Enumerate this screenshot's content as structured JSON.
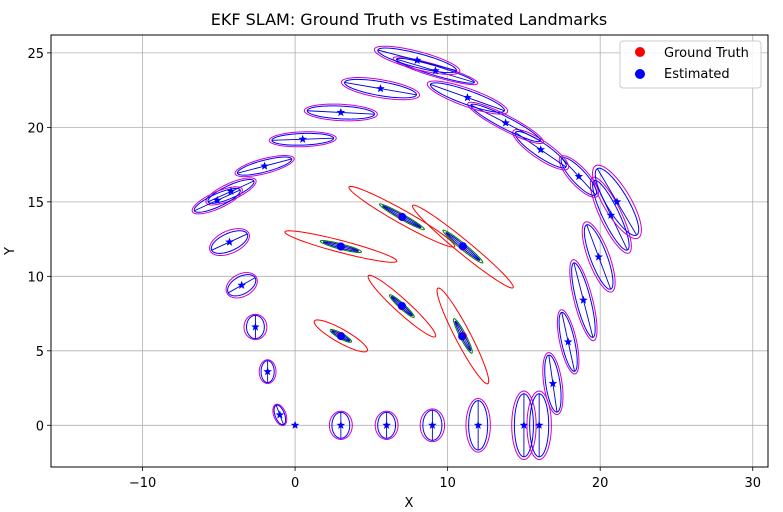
{
  "chart_data": {
    "type": "scatter",
    "title": "EKF SLAM: Ground Truth vs Estimated Landmarks",
    "xlabel": "X",
    "ylabel": "Y",
    "xlim": [
      -16,
      31
    ],
    "ylim": [
      -2.8,
      26.2
    ],
    "xticks": [
      -10,
      0,
      10,
      20,
      30
    ],
    "yticks": [
      0,
      5,
      10,
      15,
      20,
      25
    ],
    "grid": true,
    "legend_position": "top-right",
    "colors": {
      "ground_truth": "#ff0000",
      "estimated": "#0000ff",
      "pose_ellipse_outer": "#cc00cc",
      "landmark_ellipse_inner": "#008000",
      "landmark_ellipse_outer": "#ff0000"
    },
    "series": [
      {
        "name": "Ground Truth",
        "marker": "circle",
        "x": [
          3,
          7,
          11,
          3,
          7,
          11
        ],
        "y": [
          6,
          8,
          6,
          12,
          14,
          12
        ]
      },
      {
        "name": "Estimated",
        "marker": "circle",
        "x": [
          3.02,
          7.0,
          10.95,
          3.0,
          7.03,
          11.0
        ],
        "y": [
          5.98,
          8.02,
          5.97,
          12.0,
          13.98,
          12.02
        ]
      }
    ],
    "trajectory": {
      "marker": "star",
      "x": [
        0,
        -1,
        -1.8,
        -2.6,
        -3.5,
        -4.3,
        -5.1,
        -4.2,
        -2,
        0.5,
        3,
        5.6,
        8,
        9.2,
        11.3,
        13.8,
        16.1,
        18.6,
        20.7,
        21.1,
        19.9,
        18.9,
        17.9,
        16.9,
        16,
        15,
        12,
        9,
        6,
        3
      ],
      "y": [
        0,
        0.7,
        3.6,
        6.6,
        9.4,
        12.3,
        15.1,
        15.7,
        17.4,
        19.2,
        21,
        22.6,
        24.5,
        23.8,
        22,
        20.3,
        18.5,
        16.7,
        14.1,
        15,
        11.3,
        8.4,
        5.6,
        2.8,
        0,
        0,
        0,
        0,
        0,
        0
      ]
    },
    "pose_uncertainty": [
      {
        "x": 3,
        "y": 0,
        "sx": 0.75,
        "sy": 0.95,
        "angle": 0
      },
      {
        "x": 6,
        "y": 0,
        "sx": 0.75,
        "sy": 0.95,
        "angle": 0
      },
      {
        "x": 9,
        "y": 0,
        "sx": 0.8,
        "sy": 1.1,
        "angle": 0
      },
      {
        "x": 12,
        "y": 0,
        "sx": 0.8,
        "sy": 1.8,
        "angle": 0
      },
      {
        "x": 15,
        "y": 0,
        "sx": 0.8,
        "sy": 2.3,
        "angle": 0
      },
      {
        "x": 16,
        "y": 0,
        "sx": 0.8,
        "sy": 2.3,
        "angle": 0
      },
      {
        "x": 16.9,
        "y": 2.8,
        "sx": 0.6,
        "sy": 2.1,
        "angle": 8
      },
      {
        "x": 17.9,
        "y": 5.6,
        "sx": 0.55,
        "sy": 2.2,
        "angle": 12
      },
      {
        "x": 18.9,
        "y": 8.4,
        "sx": 0.6,
        "sy": 2.8,
        "angle": 14
      },
      {
        "x": 19.9,
        "y": 11.3,
        "sx": 0.7,
        "sy": 2.5,
        "angle": 20
      },
      {
        "x": 20.7,
        "y": 14.1,
        "sx": 0.7,
        "sy": 2.8,
        "angle": 25
      },
      {
        "x": 21.1,
        "y": 15,
        "sx": 0.9,
        "sy": 2.8,
        "angle": 30
      },
      {
        "x": 18.6,
        "y": 16.7,
        "sx": 0.6,
        "sy": 1.8,
        "angle": 42
      },
      {
        "x": 16.1,
        "y": 18.5,
        "sx": 0.6,
        "sy": 2.2,
        "angle": 55
      },
      {
        "x": 13.8,
        "y": 20.3,
        "sx": 0.5,
        "sy": 2.8,
        "angle": 62
      },
      {
        "x": 11.3,
        "y": 22,
        "sx": 0.6,
        "sy": 2.8,
        "angle": 70
      },
      {
        "x": 9.2,
        "y": 23.8,
        "sx": 0.4,
        "sy": 2.9,
        "angle": 73
      },
      {
        "x": 8,
        "y": 24.5,
        "sx": 0.6,
        "sy": 2.9,
        "angle": 75
      },
      {
        "x": 5.6,
        "y": 22.6,
        "sx": 0.6,
        "sy": 2.6,
        "angle": 80
      },
      {
        "x": 3,
        "y": 21,
        "sx": 0.55,
        "sy": 2.4,
        "angle": 87
      },
      {
        "x": 0.5,
        "y": 19.2,
        "sx": 0.5,
        "sy": 2.2,
        "angle": 92
      },
      {
        "x": -2,
        "y": 17.4,
        "sx": 0.5,
        "sy": 2.0,
        "angle": 105
      },
      {
        "x": -4.2,
        "y": 15.7,
        "sx": 0.55,
        "sy": 1.8,
        "angle": 115
      },
      {
        "x": -5.1,
        "y": 15.1,
        "sx": 0.55,
        "sy": 1.8,
        "angle": 115
      },
      {
        "x": -4.3,
        "y": 12.3,
        "sx": 0.75,
        "sy": 1.4,
        "angle": 115
      },
      {
        "x": -3.5,
        "y": 9.4,
        "sx": 0.75,
        "sy": 1.1,
        "angle": 120
      },
      {
        "x": -2.6,
        "y": 6.6,
        "sx": 0.75,
        "sy": 0.85,
        "angle": 0
      },
      {
        "x": -1.8,
        "y": 3.6,
        "sx": 0.55,
        "sy": 0.8,
        "angle": 0
      },
      {
        "x": -1,
        "y": 0.7,
        "sx": 0.4,
        "sy": 0.75,
        "angle": 20
      }
    ],
    "landmark_uncertainty": [
      {
        "x": 3,
        "y": 6,
        "sx": 2.0,
        "sy": 0.45,
        "angle": -30,
        "sx_in": 0.8,
        "sy_in": 0.18
      },
      {
        "x": 7,
        "y": 8,
        "sx": 3.0,
        "sy": 0.45,
        "angle": -43,
        "sx_in": 1.1,
        "sy_in": 0.18
      },
      {
        "x": 11,
        "y": 6,
        "sx": 3.6,
        "sy": 0.5,
        "angle": -63,
        "sx_in": 1.3,
        "sy_in": 0.2
      },
      {
        "x": 3,
        "y": 12,
        "sx": 3.8,
        "sy": 0.4,
        "angle": -15,
        "sx_in": 1.4,
        "sy_in": 0.18
      },
      {
        "x": 7,
        "y": 14,
        "sx": 4.0,
        "sy": 0.45,
        "angle": -30,
        "sx_in": 1.7,
        "sy_in": 0.18
      },
      {
        "x": 11,
        "y": 12,
        "sx": 4.3,
        "sy": 0.45,
        "angle": -40,
        "sx_in": 1.7,
        "sy_in": 0.2
      }
    ]
  }
}
